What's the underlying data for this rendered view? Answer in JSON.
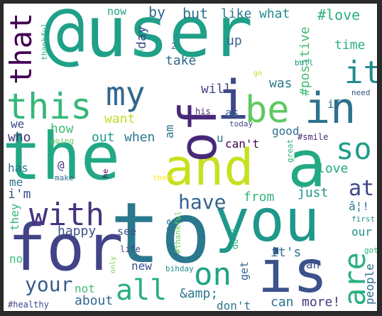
{
  "figure": {
    "title": "word cloud",
    "background": "#ffffff"
  },
  "words": [
    {
      "text": "@user",
      "color": "#1fa088",
      "rot": 0
    },
    {
      "text": "the",
      "color": "#22a884",
      "rot": 0
    },
    {
      "text": "and",
      "color": "#c7e020",
      "rot": 0
    },
    {
      "text": "to",
      "color": "#2a788e",
      "rot": 0
    },
    {
      "text": "you",
      "color": "#1f988b",
      "rot": 0
    },
    {
      "text": "a",
      "color": "#23a983",
      "rot": 0
    },
    {
      "text": "for",
      "color": "#414487",
      "rot": 0
    },
    {
      "text": "is",
      "color": "#3b528b",
      "rot": 0
    },
    {
      "text": "of",
      "color": "#482878",
      "rot": 270
    },
    {
      "text": "i",
      "color": "#3e4989",
      "rot": 0
    },
    {
      "text": "in",
      "color": "#2c728e",
      "rot": 0
    },
    {
      "text": "be",
      "color": "#5ec962",
      "rot": 0
    },
    {
      "text": "my",
      "color": "#31688e",
      "rot": 0
    },
    {
      "text": "this",
      "color": "#35b779",
      "rot": 0
    },
    {
      "text": "with",
      "color": "#46337e",
      "rot": 0
    },
    {
      "text": "all",
      "color": "#29af7f",
      "rot": 0
    },
    {
      "text": "on",
      "color": "#20a486",
      "rot": 0
    },
    {
      "text": "are",
      "color": "#2ab07f",
      "rot": 270
    },
    {
      "text": "so",
      "color": "#1f9e89",
      "rot": 0
    },
    {
      "text": "it",
      "color": "#238a8d",
      "rot": 0
    },
    {
      "text": "that",
      "color": "#440154",
      "rot": 270
    },
    {
      "text": "your",
      "color": "#375b8d",
      "rot": 0
    },
    {
      "text": "have",
      "color": "#33638d",
      "rot": 0
    },
    {
      "text": "at",
      "color": "#3e4989",
      "rot": 0
    },
    {
      "text": "#love",
      "color": "#2db27d",
      "rot": 0
    },
    {
      "text": "now",
      "color": "#1fa088",
      "rot": 0
    },
    {
      "text": "by",
      "color": "#31688e",
      "rot": 0
    },
    {
      "text": "but",
      "color": "#2c728e",
      "rot": 0
    },
    {
      "text": "like",
      "color": "#2a788e",
      "rot": 0
    },
    {
      "text": "what",
      "color": "#238a8d",
      "rot": 0
    },
    {
      "text": "thankful",
      "color": "#2ab07f",
      "rot": 270
    },
    {
      "text": "up",
      "color": "#33638d",
      "rot": 0
    },
    {
      "text": "time",
      "color": "#29af7f",
      "rot": 0
    },
    {
      "text": "2",
      "color": "#2c728e",
      "rot": 0
    },
    {
      "text": "take",
      "color": "#31688e",
      "rot": 0
    },
    {
      "text": "#positive",
      "color": "#3fbc73",
      "rot": 270
    },
    {
      "text": "was",
      "color": "#2a788e",
      "rot": 0
    },
    {
      "text": "will",
      "color": "#414487",
      "rot": 0
    },
    {
      "text": "day",
      "color": "#3e4989",
      "rot": 270
    },
    {
      "text": "or",
      "color": "#2db27d",
      "rot": 0
    },
    {
      "text": "bull",
      "color": "#21918c",
      "rot": 0
    },
    {
      "text": "go",
      "color": "#b5de2b",
      "rot": 0
    },
    {
      "text": "need",
      "color": "#3b528b",
      "rot": 0
    },
    {
      "text": "want",
      "color": "#bddf26",
      "rot": 0
    },
    {
      "text": "his",
      "color": "#482878",
      "rot": 0
    },
    {
      "text": "as",
      "color": "#33638d",
      "rot": 0
    },
    {
      "text": "if",
      "color": "#2c728e",
      "rot": 0
    },
    {
      "text": "we",
      "color": "#3e4989",
      "rot": 0
    },
    {
      "text": "how",
      "color": "#3fbc73",
      "rot": 0
    },
    {
      "text": "today",
      "color": "#3e4989",
      "rot": 0
    },
    {
      "text": "u",
      "color": "#2a788e",
      "rot": 0
    },
    {
      "text": "good",
      "color": "#2c728e",
      "rot": 0
    },
    {
      "text": "who",
      "color": "#46337e",
      "rot": 0
    },
    {
      "text": "out",
      "color": "#1f988b",
      "rot": 0
    },
    {
      "text": "when",
      "color": "#2a788e",
      "rot": 0
    },
    {
      "text": "am",
      "color": "#2c728e",
      "rot": 270
    },
    {
      "text": "can't",
      "color": "#440154",
      "rot": 0
    },
    {
      "text": "#smile",
      "color": "#482878",
      "rot": 0
    },
    {
      "text": "going",
      "color": "#5ec962",
      "rot": 0
    },
    {
      "text": "great",
      "color": "#2db27d",
      "rot": 270
    },
    {
      "text": "has",
      "color": "#2a788e",
      "rot": 0
    },
    {
      "text": "@",
      "color": "#472d7b",
      "rot": 0
    },
    {
      "text": "make",
      "color": "#31688e",
      "rot": 0
    },
    {
      "text": "he",
      "color": "#440154",
      "rot": 270
    },
    {
      "text": "their",
      "color": "#fde725",
      "rot": 0
    },
    {
      "text": "love",
      "color": "#22a884",
      "rot": 0
    },
    {
      "text": "me",
      "color": "#2c728e",
      "rot": 0
    },
    {
      "text": "i'm",
      "color": "#3b528b",
      "rot": 0
    },
    {
      "text": "from",
      "color": "#35b779",
      "rot": 0
    },
    {
      "text": "just",
      "color": "#1f988b",
      "rot": 0
    },
    {
      "text": "â¦!",
      "color": "#2a788e",
      "rot": 0
    },
    {
      "text": "they",
      "color": "#35b779",
      "rot": 270
    },
    {
      "text": "happy",
      "color": "#3b528b",
      "rot": 0
    },
    {
      "text": "see",
      "color": "#3b528b",
      "rot": 0
    },
    {
      "text": "one",
      "color": "#2a788e",
      "rot": 270
    },
    {
      "text": "#thankful",
      "color": "#6ece58",
      "rot": 270
    },
    {
      "text": "do ‼",
      "color": "#2ab07f",
      "rot": 270
    },
    {
      "text": "first",
      "color": "#21918c",
      "rot": 0
    },
    {
      "text": "our",
      "color": "#21918c",
      "rot": 0
    },
    {
      "text": "life",
      "color": "#3e4989",
      "rot": 0
    },
    {
      "text": "it's",
      "color": "#2a788e",
      "rot": 0
    },
    {
      "text": "got",
      "color": "#2db27d",
      "rot": 0
    },
    {
      "text": "no",
      "color": "#38b977",
      "rot": 0
    },
    {
      "text": "only",
      "color": "#7ad151",
      "rot": 270
    },
    {
      "text": "new",
      "color": "#3b528b",
      "rot": 0
    },
    {
      "text": "bihday",
      "color": "#21918c",
      "rot": 0
    },
    {
      "text": "get",
      "color": "#33638d",
      "rot": 270
    },
    {
      "text": "an",
      "color": "#3e4989",
      "rot": 0
    },
    {
      "text": "people",
      "color": "#2c728e",
      "rot": 270
    },
    {
      "text": "about",
      "color": "#31688e",
      "rot": 0
    },
    {
      "text": "not",
      "color": "#3fbc73",
      "rot": 0
    },
    {
      "text": "&amp;",
      "color": "#2a788e",
      "rot": 0
    },
    {
      "text": "can",
      "color": "#2c728e",
      "rot": 0
    },
    {
      "text": "more!",
      "color": "#443983",
      "rot": 0
    },
    {
      "text": "#healthy",
      "color": "#3e4989",
      "rot": 0
    },
    {
      "text": "don't",
      "color": "#2a788e",
      "rot": 0
    }
  ]
}
